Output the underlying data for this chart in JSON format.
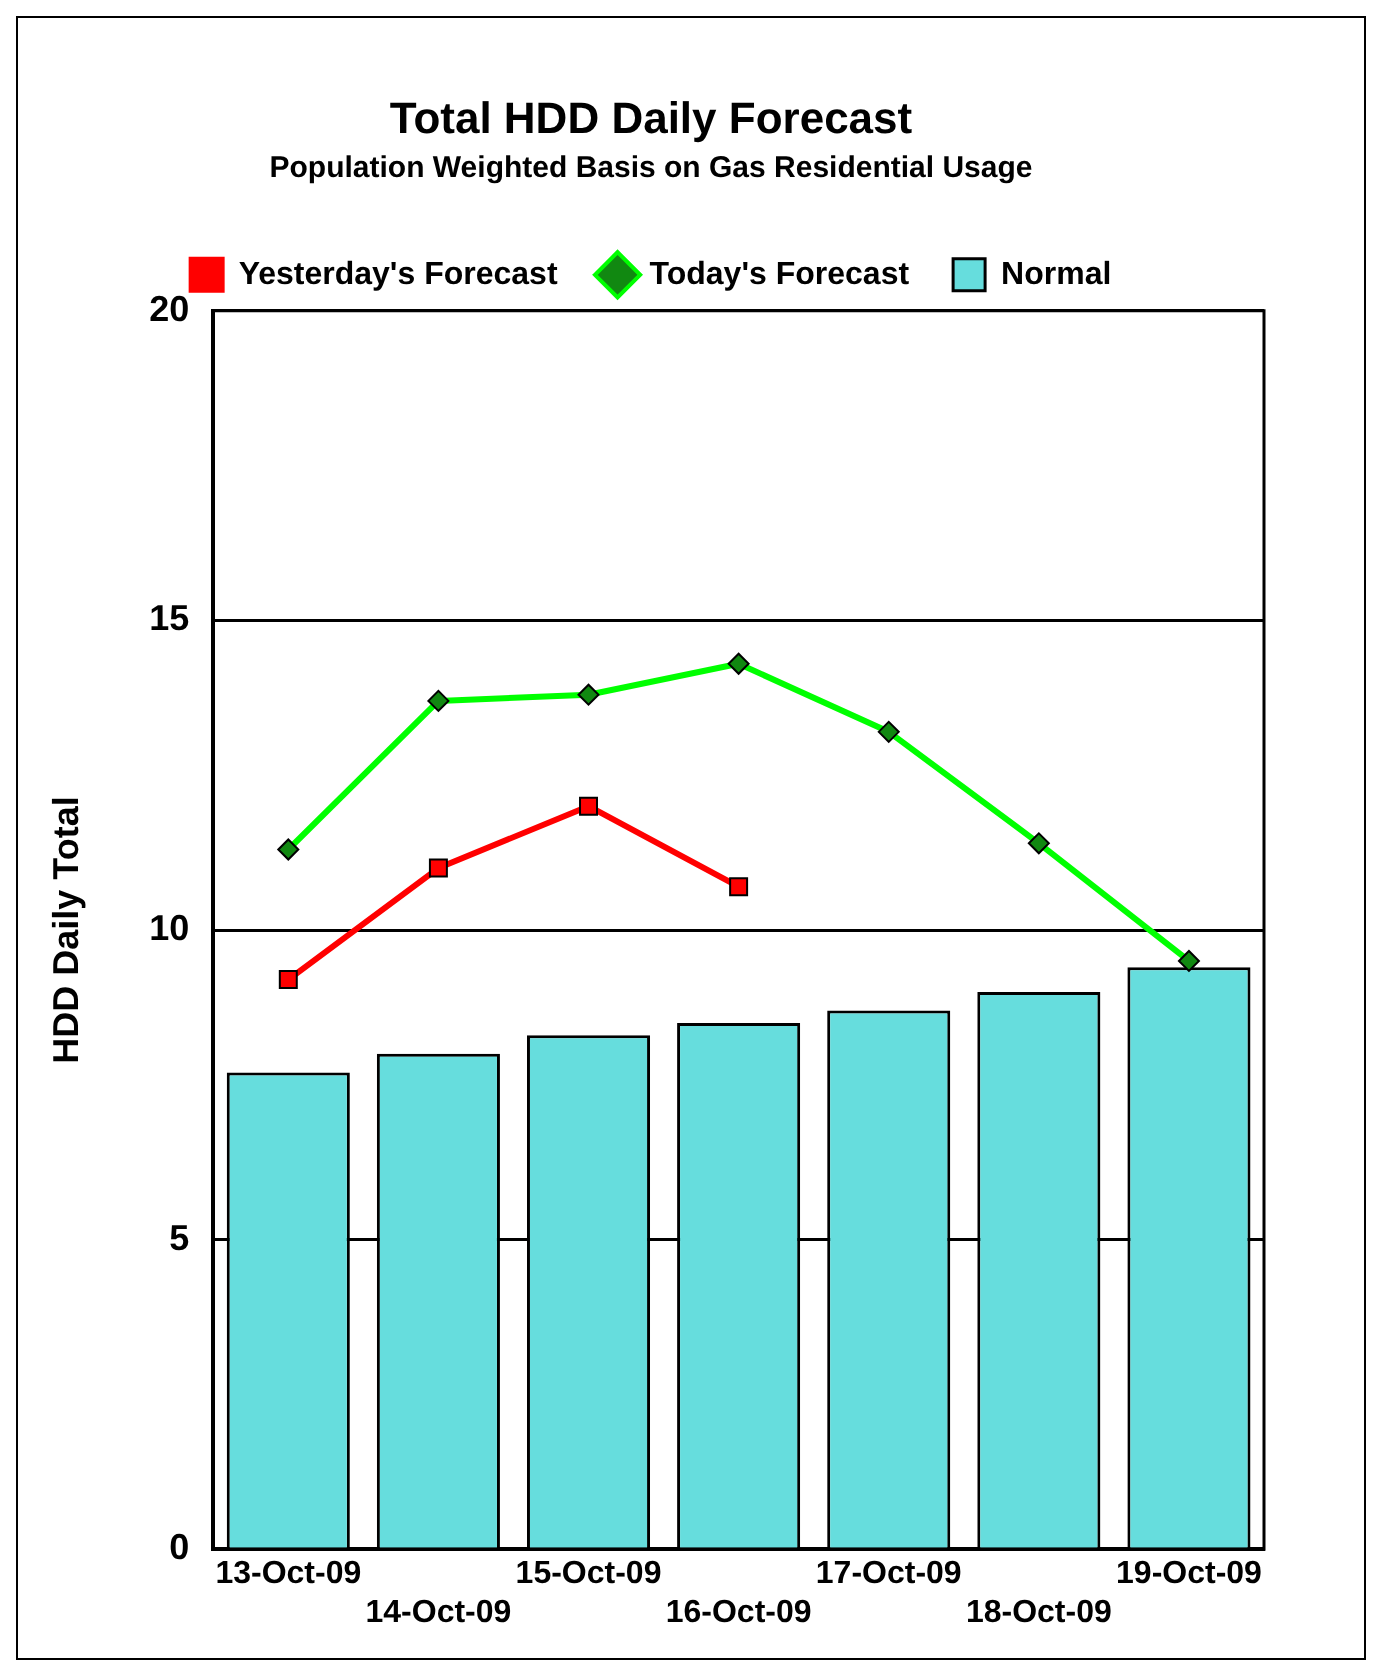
{
  "chart_data": {
    "type": "bar",
    "title": "Total HDD Daily Forecast",
    "subtitle": "Population Weighted Basis on Gas Residential Usage",
    "ylabel": "HDD Daily Total",
    "categories": [
      "13-Oct-09",
      "14-Oct-09",
      "15-Oct-09",
      "16-Oct-09",
      "17-Oct-09",
      "18-Oct-09",
      "19-Oct-09"
    ],
    "series": [
      {
        "name": "Yesterday's Forecast",
        "type": "line",
        "color": "#ff0000",
        "marker": "square",
        "values": [
          9.2,
          11.0,
          12.0,
          10.7,
          null,
          null,
          null
        ]
      },
      {
        "name": "Today's Forecast",
        "type": "line",
        "color": "#00ff00",
        "marker": "diamond",
        "values": [
          11.3,
          13.7,
          13.8,
          14.3,
          13.2,
          11.4,
          9.5
        ]
      },
      {
        "name": "Normal",
        "color": "#66dddd",
        "values": [
          7.7,
          8.0,
          8.3,
          8.5,
          8.7,
          9.0,
          9.4
        ]
      }
    ],
    "ylim": [
      0,
      20
    ],
    "yticks": [
      0,
      5,
      10,
      15,
      20
    ],
    "grid": "y",
    "legend": "top"
  }
}
